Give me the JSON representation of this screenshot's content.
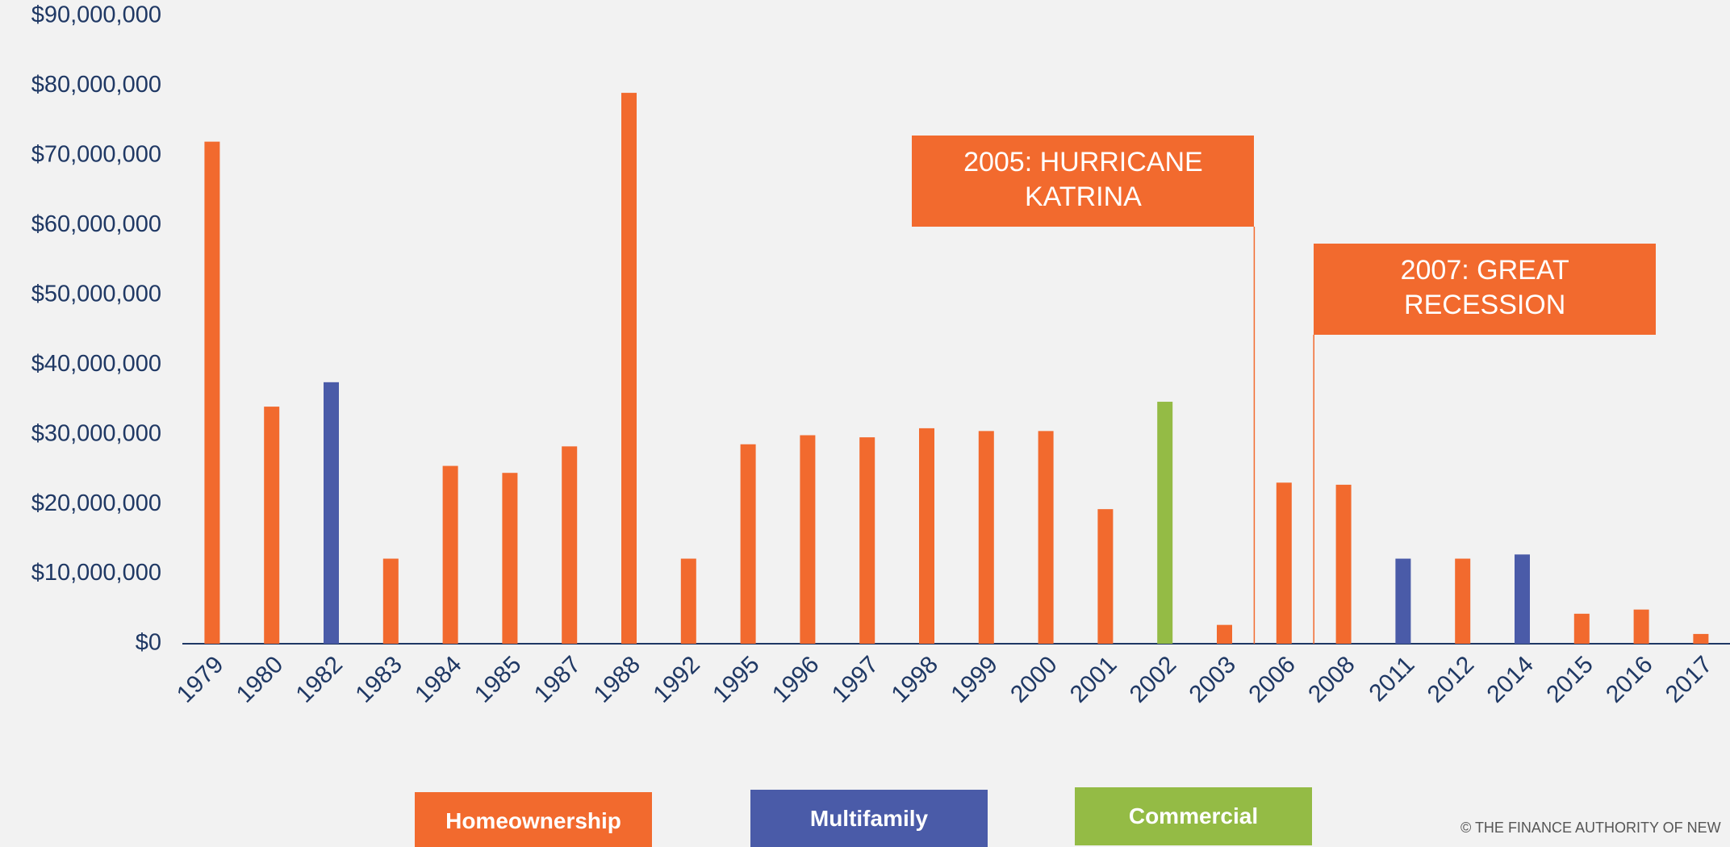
{
  "chart_data": {
    "type": "bar",
    "categories": [
      "1979",
      "1980",
      "1982",
      "1983",
      "1984",
      "1985",
      "1987",
      "1988",
      "1992",
      "1995",
      "1996",
      "1997",
      "1998",
      "1999",
      "2000",
      "2001",
      "2002",
      "2003",
      "2006",
      "2008",
      "2011",
      "2012",
      "2014",
      "2015",
      "2016",
      "2017"
    ],
    "series": [
      {
        "name": "Homeownership",
        "color": "#f26a2e",
        "values": [
          72000000,
          34000000,
          null,
          12200000,
          25500000,
          24500000,
          28300000,
          79000000,
          12200000,
          28600000,
          29900000,
          29600000,
          30900000,
          30500000,
          30500000,
          19300000,
          null,
          2700000,
          23100000,
          22800000,
          null,
          12200000,
          null,
          4300000,
          4900000,
          1400000
        ]
      },
      {
        "name": "Multifamily",
        "color": "#4a5ba8",
        "values": [
          null,
          null,
          37500000,
          null,
          null,
          null,
          null,
          null,
          null,
          null,
          null,
          null,
          null,
          null,
          null,
          null,
          null,
          null,
          null,
          null,
          12200000,
          null,
          12800000,
          null,
          null,
          null
        ]
      },
      {
        "name": "Commercial",
        "color": "#94bb45",
        "values": [
          null,
          null,
          null,
          null,
          null,
          null,
          null,
          null,
          null,
          null,
          null,
          null,
          null,
          null,
          null,
          null,
          34700000,
          null,
          null,
          null,
          null,
          null,
          null,
          null,
          null,
          null
        ]
      }
    ],
    "ylim": [
      0,
      90000000
    ],
    "yticks": [
      {
        "value": 0,
        "label": "$0"
      },
      {
        "value": 10000000,
        "label": "$10,000,000"
      },
      {
        "value": 20000000,
        "label": "$20,000,000"
      },
      {
        "value": 30000000,
        "label": "$30,000,000"
      },
      {
        "value": 40000000,
        "label": "$40,000,000"
      },
      {
        "value": 50000000,
        "label": "$50,000,000"
      },
      {
        "value": 60000000,
        "label": "$60,000,000"
      },
      {
        "value": 70000000,
        "label": "$70,000,000"
      },
      {
        "value": 80000000,
        "label": "$80,000,000"
      },
      {
        "value": 90000000,
        "label": "$90,000,000"
      }
    ],
    "annotations": [
      {
        "text": "2005: HURRICANE KATRINA",
        "color": "#f26a2e"
      },
      {
        "text": "2007: GREAT RECESSION",
        "color": "#f26a2e"
      }
    ],
    "source": "© THE FINANCE AUTHORITY OF NEW"
  }
}
